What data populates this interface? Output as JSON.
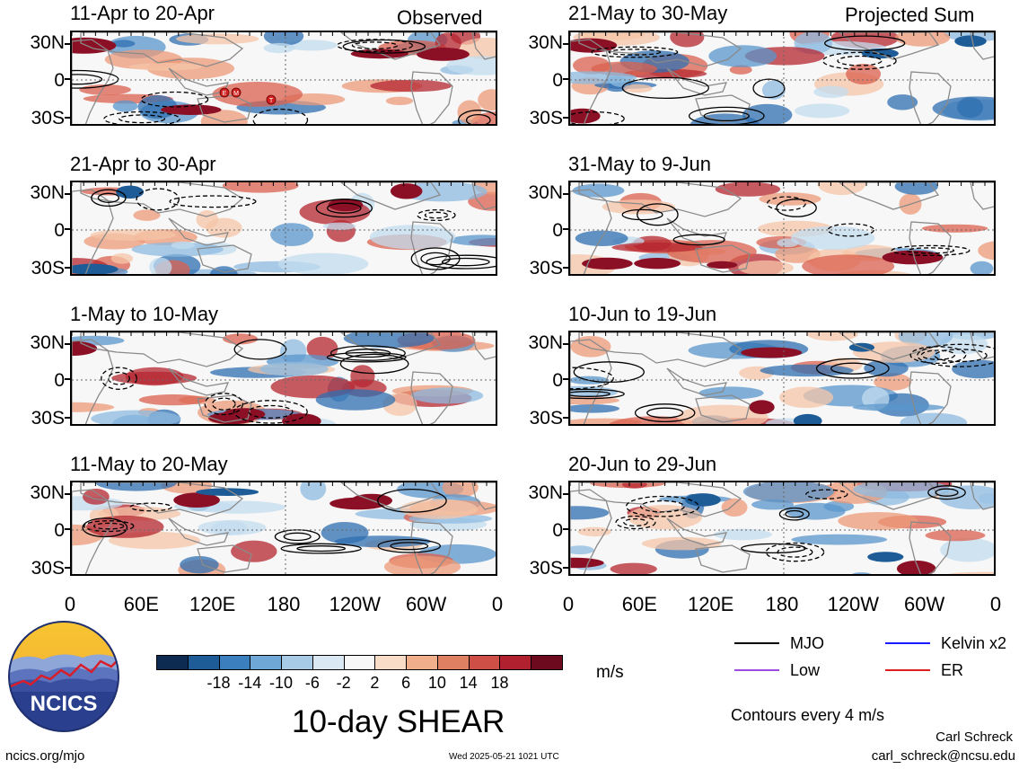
{
  "headers": {
    "left": "Observed",
    "right": "Projected Sum"
  },
  "panels": [
    {
      "title": "11-Apr to 20-Apr",
      "col": 0,
      "row": 0,
      "markers": [
        "E",
        "M",
        "T"
      ]
    },
    {
      "title": "21-Apr to 30-Apr",
      "col": 0,
      "row": 1
    },
    {
      "title": "1-May to 10-May",
      "col": 0,
      "row": 2
    },
    {
      "title": "11-May to 20-May",
      "col": 0,
      "row": 3
    },
    {
      "title": "21-May to 30-May",
      "col": 1,
      "row": 0
    },
    {
      "title": "31-May to 9-Jun",
      "col": 1,
      "row": 1
    },
    {
      "title": "10-Jun to 19-Jun",
      "col": 1,
      "row": 2
    },
    {
      "title": "20-Jun to 29-Jun",
      "col": 1,
      "row": 3
    }
  ],
  "lat_labels": [
    "30N",
    "0",
    "30S"
  ],
  "lon_labels": [
    "0",
    "60E",
    "120E",
    "180",
    "120W",
    "60W",
    "0"
  ],
  "colorbar": {
    "colors": [
      "#0d2a50",
      "#1d5c96",
      "#3c7fbe",
      "#6fa7d6",
      "#a7cae6",
      "#d9e8f3",
      "#f7f7f7",
      "#f9dcc8",
      "#f1ae8b",
      "#e08063",
      "#cd4f45",
      "#b0202e",
      "#6d0a1e"
    ],
    "labels": [
      "-18",
      "-14",
      "-10",
      "-6",
      "-2",
      "2",
      "6",
      "10",
      "14",
      "18"
    ],
    "units": "m/s"
  },
  "legend": [
    {
      "label": "MJO",
      "color": "#000000"
    },
    {
      "label": "Kelvin x2",
      "color": "#1a1aff"
    },
    {
      "label": "Low",
      "color": "#9d4ce0"
    },
    {
      "label": "ER",
      "color": "#e02020"
    }
  ],
  "contours_note": "Contours every 4 m/s",
  "main_title": "10-day SHEAR",
  "logo_text": "NCICS",
  "footer": {
    "left": "ncics.org/mjo",
    "center": "Wed 2025-05-21 1021 UTC",
    "author": "Carl Schreck",
    "email": "carl_schreck@ncsu.edu"
  }
}
